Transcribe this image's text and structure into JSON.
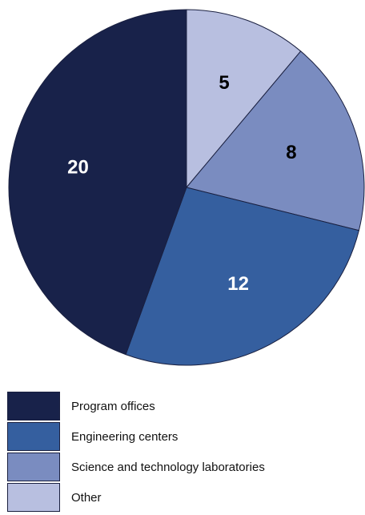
{
  "chart_data": {
    "type": "pie",
    "categories": [
      "Program offices",
      "Engineering centers",
      "Science and technology laboratories",
      "Other"
    ],
    "values": [
      20,
      12,
      8,
      5
    ],
    "colors": [
      "#18224a",
      "#355f9f",
      "#7a8cc0",
      "#b8bfe0"
    ],
    "label_colors": [
      "#ffffff",
      "#ffffff",
      "#000000",
      "#000000"
    ],
    "title": "",
    "legend_position": "bottom-left"
  },
  "legend": {
    "items": [
      {
        "label": "Program offices",
        "color": "#18224a"
      },
      {
        "label": "Engineering centers",
        "color": "#355f9f"
      },
      {
        "label": "Science and technology laboratories",
        "color": "#7a8cc0"
      },
      {
        "label": "Other",
        "color": "#b8bfe0"
      }
    ]
  }
}
